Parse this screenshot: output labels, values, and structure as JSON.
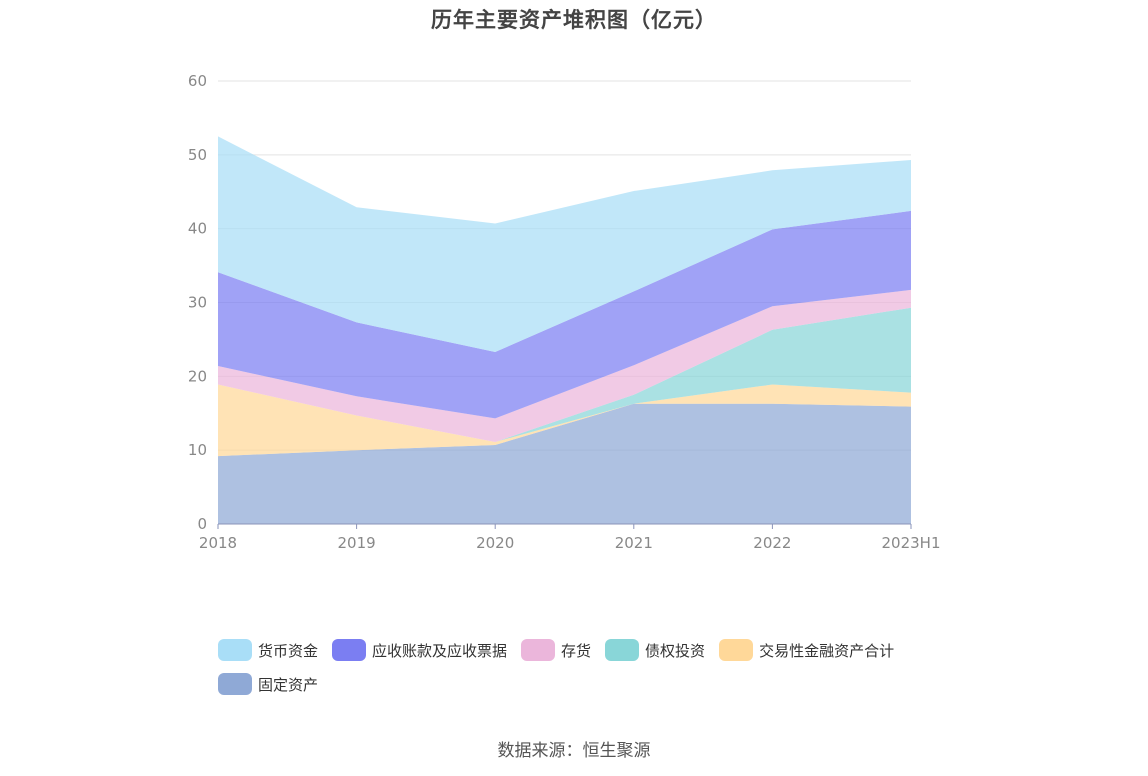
{
  "chart_data": {
    "type": "area",
    "stacked": true,
    "title": "历年主要资产堆积图（亿元）",
    "categories": [
      "2018",
      "2019",
      "2020",
      "2021",
      "2022",
      "2023H1"
    ],
    "ylim": [
      0,
      60
    ],
    "yticks": [
      0,
      10,
      20,
      30,
      40,
      50,
      60
    ],
    "grid": true,
    "legend_position": "bottom",
    "series": [
      {
        "name": "固定资产",
        "color": "#8fa9d6",
        "values": [
          9.2,
          10.0,
          10.7,
          16.3,
          16.3,
          15.9
        ]
      },
      {
        "name": "交易性金融资产合计",
        "color": "#ffd899",
        "values": [
          9.7,
          4.7,
          0.4,
          0.0,
          2.6,
          1.9
        ]
      },
      {
        "name": "债权投资",
        "color": "#89d6d8",
        "values": [
          0.0,
          0.0,
          0.0,
          1.2,
          7.4,
          11.5
        ]
      },
      {
        "name": "存货",
        "color": "#ebb6db",
        "values": [
          2.5,
          2.6,
          3.2,
          4.0,
          3.2,
          2.4
        ]
      },
      {
        "name": "应收账款及应收票据",
        "color": "#7b7ef2",
        "values": [
          12.7,
          10.0,
          9.0,
          10.0,
          10.4,
          10.7
        ]
      },
      {
        "name": "货币资金",
        "color": "#a9def7",
        "values": [
          18.4,
          15.6,
          17.4,
          13.6,
          8.0,
          6.9
        ]
      }
    ],
    "legend_order": [
      "货币资金",
      "应收账款及应收票据",
      "存货",
      "债权投资",
      "交易性金融资产合计",
      "固定资产"
    ]
  },
  "footer": {
    "source": "数据来源：恒生聚源"
  }
}
